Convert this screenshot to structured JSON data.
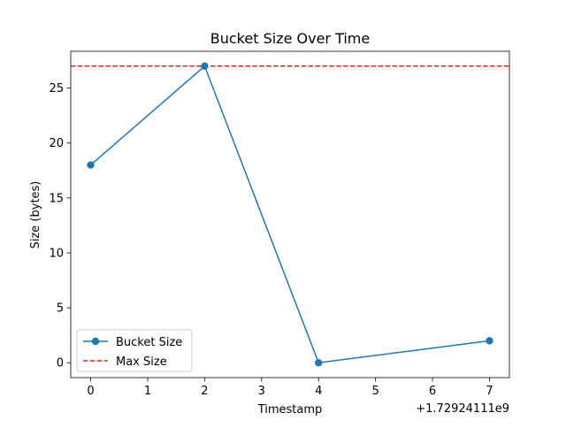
{
  "chart_data": {
    "type": "line",
    "title": "Bucket Size Over Time",
    "xlabel": "Timestamp",
    "ylabel": "Size (bytes)",
    "x_offset_label": "+1.72924111e9",
    "xlim": [
      -0.35,
      7.35
    ],
    "ylim": [
      -1.35,
      28.35
    ],
    "x_ticks": [
      0,
      1,
      2,
      3,
      4,
      5,
      6,
      7
    ],
    "x_tick_labels": [
      "0",
      "1",
      "2",
      "3",
      "4",
      "5",
      "6",
      "7"
    ],
    "y_ticks": [
      0,
      5,
      10,
      15,
      20,
      25
    ],
    "y_tick_labels": [
      "0",
      "5",
      "10",
      "15",
      "20",
      "25"
    ],
    "grid": false,
    "legend_position": "lower-left",
    "series": [
      {
        "name": "Bucket Size",
        "style": "solid line with circle markers",
        "color": "#1f77b4",
        "x": [
          0,
          2,
          4,
          7
        ],
        "y": [
          18,
          27,
          0,
          2
        ]
      }
    ],
    "reference_lines": [
      {
        "name": "Max Size",
        "orientation": "horizontal",
        "style": "dashed",
        "color": "#d62728",
        "value": 27
      }
    ]
  }
}
